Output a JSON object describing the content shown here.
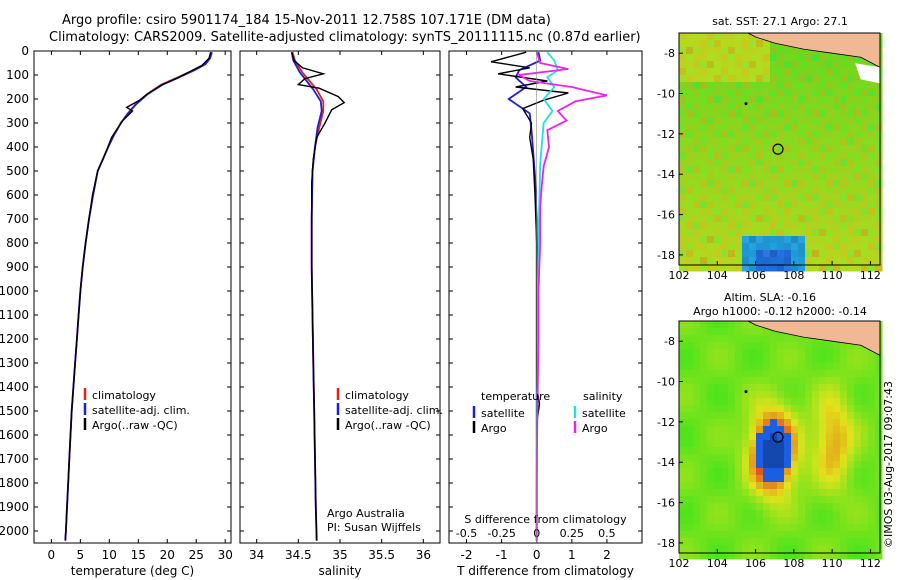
{
  "header": {
    "line1": "Argo profile: csiro 5901174_184 15-Nov-2011 12.758S 107.171E (DM data)",
    "line2": "Climatology: CARS2009. Satellite-adjusted climatology: synTS_20111115.nc (0.87d earlier)"
  },
  "colors": {
    "clim": "#e0241b",
    "sat": "#1f1fd6",
    "argo": "#000000",
    "sat_s": "#22e0e0",
    "argo_s": "#ee22ee",
    "land": "#f0b894"
  },
  "chart_data": [
    {
      "type": "line",
      "panel": "temperature",
      "xlabel": "temperature (deg C)",
      "xlim": [
        -3,
        31
      ],
      "xticks": [
        0,
        5,
        10,
        15,
        20,
        25,
        30
      ],
      "ylim": [
        2050,
        0
      ],
      "yticks": [
        0,
        100,
        200,
        300,
        400,
        500,
        600,
        700,
        800,
        900,
        1000,
        1100,
        1200,
        1300,
        1400,
        1500,
        1600,
        1700,
        1800,
        1900,
        2000
      ],
      "legend": [
        "climatology",
        "satellite-adj. clim.",
        "Argo(..raw -QC)"
      ],
      "series": [
        {
          "name": "climatology",
          "color_key": "clim",
          "points": [
            [
              27.6,
              5
            ],
            [
              27.3,
              30
            ],
            [
              26.5,
              55
            ],
            [
              24.5,
              80
            ],
            [
              21.8,
              110
            ],
            [
              19.0,
              140
            ],
            [
              16.5,
              180
            ],
            [
              14.6,
              220
            ],
            [
              13.2,
              260
            ],
            [
              12.0,
              300
            ],
            [
              10.8,
              350
            ],
            [
              9.8,
              400
            ],
            [
              8.9,
              450
            ],
            [
              8.0,
              500
            ],
            [
              7.2,
              600
            ],
            [
              6.5,
              700
            ],
            [
              5.9,
              800
            ],
            [
              5.4,
              900
            ],
            [
              5.0,
              1000
            ],
            [
              4.7,
              1100
            ],
            [
              4.4,
              1200
            ],
            [
              4.1,
              1300
            ],
            [
              3.8,
              1400
            ],
            [
              3.5,
              1500
            ],
            [
              3.3,
              1600
            ],
            [
              3.1,
              1700
            ],
            [
              2.9,
              1800
            ],
            [
              2.7,
              1900
            ],
            [
              2.5,
              2000
            ],
            [
              2.4,
              2040
            ]
          ]
        },
        {
          "name": "satellite-adj. clim.",
          "color_key": "sat",
          "points": [
            [
              27.7,
              5
            ],
            [
              27.4,
              30
            ],
            [
              26.6,
              55
            ],
            [
              24.7,
              80
            ],
            [
              22.0,
              110
            ],
            [
              19.2,
              140
            ],
            [
              16.6,
              180
            ],
            [
              14.7,
              220
            ],
            [
              13.2,
              260
            ],
            [
              12.0,
              300
            ],
            [
              10.8,
              350
            ],
            [
              9.8,
              400
            ],
            [
              8.9,
              450
            ],
            [
              8.0,
              500
            ],
            [
              7.2,
              600
            ],
            [
              6.5,
              700
            ],
            [
              5.9,
              800
            ],
            [
              5.4,
              900
            ],
            [
              5.0,
              1000
            ],
            [
              4.7,
              1100
            ],
            [
              4.4,
              1200
            ],
            [
              4.1,
              1300
            ],
            [
              3.8,
              1400
            ],
            [
              3.5,
              1500
            ],
            [
              3.3,
              1600
            ],
            [
              3.1,
              1700
            ],
            [
              2.9,
              1800
            ],
            [
              2.7,
              1900
            ],
            [
              2.5,
              2000
            ],
            [
              2.4,
              2040
            ]
          ]
        },
        {
          "name": "Argo(..raw -QC)",
          "color_key": "argo",
          "points": [
            [
              27.5,
              5
            ],
            [
              27.2,
              30
            ],
            [
              26.0,
              60
            ],
            [
              24.0,
              85
            ],
            [
              21.5,
              115
            ],
            [
              18.8,
              145
            ],
            [
              16.8,
              175
            ],
            [
              15.2,
              205
            ],
            [
              13.0,
              235
            ],
            [
              14.0,
              250
            ],
            [
              12.3,
              290
            ],
            [
              11.2,
              330
            ],
            [
              10.4,
              360
            ],
            [
              9.6,
              410
            ],
            [
              8.9,
              450
            ],
            [
              8.0,
              500
            ],
            [
              7.1,
              600
            ],
            [
              6.5,
              700
            ],
            [
              5.9,
              800
            ],
            [
              5.4,
              900
            ],
            [
              5.0,
              1000
            ],
            [
              4.7,
              1100
            ],
            [
              4.4,
              1200
            ],
            [
              4.1,
              1300
            ],
            [
              3.8,
              1400
            ],
            [
              3.5,
              1500
            ],
            [
              3.3,
              1600
            ],
            [
              3.1,
              1700
            ],
            [
              2.9,
              1800
            ],
            [
              2.7,
              1900
            ],
            [
              2.5,
              2000
            ],
            [
              2.4,
              2040
            ]
          ]
        }
      ]
    },
    {
      "type": "line",
      "panel": "salinity",
      "xlabel": "salinity",
      "xlim": [
        33.8,
        36.2
      ],
      "xticks": [
        34,
        34.5,
        35,
        35.5,
        36
      ],
      "ticklabels": [
        "34",
        "34.5",
        "35",
        "35.5",
        "36"
      ],
      "ylim": [
        2050,
        0
      ],
      "legend": [
        "climatology",
        "satellite-adj. clim.",
        "Argo(..raw -QC)"
      ],
      "note": [
        "Argo Australia",
        "PI: Susan Wijffels"
      ],
      "series": [
        {
          "name": "climatology",
          "color_key": "clim",
          "points": [
            [
              34.43,
              5
            ],
            [
              34.46,
              40
            ],
            [
              34.55,
              90
            ],
            [
              34.72,
              160
            ],
            [
              34.8,
              210
            ],
            [
              34.8,
              250
            ],
            [
              34.75,
              320
            ],
            [
              34.7,
              400
            ],
            [
              34.67,
              500
            ],
            [
              34.66,
              700
            ],
            [
              34.66,
              900
            ],
            [
              34.67,
              1100
            ],
            [
              34.68,
              1300
            ],
            [
              34.69,
              1500
            ],
            [
              34.7,
              1700
            ],
            [
              34.71,
              1900
            ],
            [
              34.72,
              2040
            ]
          ]
        },
        {
          "name": "satellite-adj. clim.",
          "color_key": "sat",
          "points": [
            [
              34.42,
              5
            ],
            [
              34.44,
              40
            ],
            [
              34.52,
              90
            ],
            [
              34.68,
              160
            ],
            [
              34.77,
              210
            ],
            [
              34.78,
              250
            ],
            [
              34.73,
              320
            ],
            [
              34.7,
              400
            ],
            [
              34.67,
              500
            ],
            [
              34.66,
              700
            ],
            [
              34.66,
              900
            ],
            [
              34.67,
              1100
            ],
            [
              34.68,
              1300
            ],
            [
              34.69,
              1500
            ],
            [
              34.7,
              1700
            ],
            [
              34.71,
              1900
            ],
            [
              34.72,
              2040
            ]
          ]
        },
        {
          "name": "Argo(..raw -QC)",
          "color_key": "argo",
          "points": [
            [
              34.42,
              5
            ],
            [
              34.45,
              40
            ],
            [
              34.55,
              70
            ],
            [
              34.8,
              95
            ],
            [
              34.58,
              115
            ],
            [
              34.5,
              140
            ],
            [
              34.75,
              155
            ],
            [
              34.98,
              190
            ],
            [
              35.05,
              215
            ],
            [
              34.9,
              245
            ],
            [
              34.82,
              300
            ],
            [
              34.72,
              360
            ],
            [
              34.68,
              450
            ],
            [
              34.66,
              550
            ],
            [
              34.66,
              700
            ],
            [
              34.66,
              900
            ],
            [
              34.67,
              1100
            ],
            [
              34.68,
              1300
            ],
            [
              34.69,
              1500
            ],
            [
              34.7,
              1700
            ],
            [
              34.71,
              1900
            ],
            [
              34.72,
              2040
            ]
          ]
        }
      ]
    },
    {
      "type": "line",
      "panel": "difference",
      "xlabel": "T difference from climatology",
      "xlabel2": "S difference from climatology",
      "xlim": [
        -2.5,
        3
      ],
      "xticks": [
        -2,
        -1,
        0,
        1,
        2
      ],
      "sticks_pos": [
        -2,
        -1,
        0,
        1,
        2
      ],
      "sticks_labels": [
        "-0.5",
        "-0.25",
        "0",
        "0.25",
        "0.5"
      ],
      "ylim": [
        2050,
        0
      ],
      "legend_t": [
        "temperature",
        "satellite",
        "Argo"
      ],
      "legend_s": [
        "salinity",
        "satellite",
        "Argo"
      ],
      "series": [
        {
          "name": "T satellite",
          "color_key": "sat",
          "points": [
            [
              0.05,
              5
            ],
            [
              0.1,
              40
            ],
            [
              -0.5,
              80
            ],
            [
              -0.6,
              110
            ],
            [
              -0.3,
              150
            ],
            [
              -0.8,
              200
            ],
            [
              -0.2,
              260
            ],
            [
              -0.15,
              330
            ],
            [
              -0.1,
              420
            ],
            [
              -0.05,
              520
            ],
            [
              0,
              700
            ],
            [
              0,
              900
            ],
            [
              0,
              1100
            ],
            [
              0,
              1300
            ],
            [
              0,
              1500
            ],
            [
              0,
              1700
            ],
            [
              0,
              1900
            ],
            [
              0,
              2040
            ]
          ]
        },
        {
          "name": "T Argo",
          "color_key": "argo",
          "points": [
            [
              -0.3,
              5
            ],
            [
              -1.3,
              45
            ],
            [
              -0.2,
              70
            ],
            [
              -1.1,
              95
            ],
            [
              0.3,
              125
            ],
            [
              -0.6,
              150
            ],
            [
              0.9,
              175
            ],
            [
              0.2,
              205
            ],
            [
              -0.4,
              240
            ],
            [
              -0.15,
              300
            ],
            [
              -0.2,
              360
            ],
            [
              -0.1,
              450
            ],
            [
              -0.05,
              600
            ],
            [
              0,
              800
            ],
            [
              0,
              1000
            ],
            [
              0,
              1200
            ],
            [
              0,
              1400
            ],
            [
              0.08,
              1470
            ],
            [
              0,
              1550
            ],
            [
              0,
              1700
            ],
            [
              0,
              1900
            ],
            [
              0,
              2040
            ]
          ]
        },
        {
          "name": "S satellite",
          "color_key": "sat_s",
          "points": [
            [
              0.3,
              5
            ],
            [
              0.5,
              40
            ],
            [
              0.6,
              80
            ],
            [
              0.3,
              110
            ],
            [
              0.5,
              150
            ],
            [
              0.2,
              200
            ],
            [
              0.45,
              250
            ],
            [
              0.2,
              300
            ],
            [
              0.15,
              380
            ],
            [
              0.1,
              470
            ],
            [
              0.08,
              600
            ],
            [
              0.05,
              800
            ],
            [
              0.03,
              1000
            ],
            [
              0.02,
              1300
            ],
            [
              0.01,
              1600
            ],
            [
              0.0,
              2040
            ]
          ]
        },
        {
          "name": "S Argo",
          "color_key": "argo_s",
          "points": [
            [
              0.0,
              5
            ],
            [
              0.1,
              50
            ],
            [
              0.9,
              75
            ],
            [
              -0.5,
              100
            ],
            [
              -0.2,
              125
            ],
            [
              1.0,
              150
            ],
            [
              2.0,
              185
            ],
            [
              1.1,
              210
            ],
            [
              0.6,
              250
            ],
            [
              0.85,
              290
            ],
            [
              0.3,
              330
            ],
            [
              0.35,
              400
            ],
            [
              0.2,
              480
            ],
            [
              0.15,
              550
            ],
            [
              0.1,
              650
            ],
            [
              0.1,
              800
            ],
            [
              0.05,
              1000
            ],
            [
              0.05,
              1200
            ],
            [
              0.02,
              1500
            ],
            [
              0.0,
              1800
            ],
            [
              0.0,
              2040
            ]
          ]
        }
      ]
    },
    {
      "type": "heatmap",
      "panel": "sst-map",
      "title": "sat. SST: 27.1 Argo: 27.1",
      "xlim": [
        102,
        112.5
      ],
      "ylim": [
        -18.5,
        -7
      ],
      "xticks": [
        102,
        104,
        106,
        108,
        110,
        112
      ],
      "yticks": [
        -8,
        -10,
        -12,
        -14,
        -16,
        -18
      ],
      "argo_lon": 107.171,
      "argo_lat": -12.758
    },
    {
      "type": "heatmap",
      "panel": "sla-map",
      "title_line1": "Altim. SLA: -0.16",
      "title_line2": "Argo h1000: -0.12 h2000: -0.14",
      "xlim": [
        102,
        112.5
      ],
      "ylim": [
        -18.5,
        -7
      ],
      "xticks": [
        102,
        104,
        106,
        108,
        110,
        112
      ],
      "yticks": [
        -8,
        -10,
        -12,
        -14,
        -16,
        -18
      ],
      "argo_lon": 107.171,
      "argo_lat": -12.758
    }
  ],
  "footer": {
    "stamp": "©IMOS 03-Aug-2017 09:07:43"
  }
}
